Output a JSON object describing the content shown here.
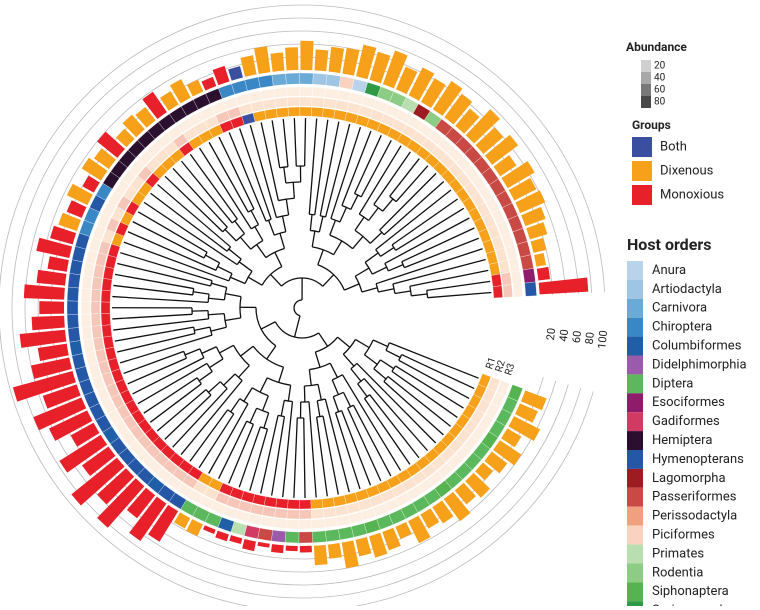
{
  "chart_data": {
    "type": "circular-tree",
    "ylim": [
      0,
      100
    ],
    "yticks": [
      20,
      40,
      60,
      80,
      100
    ],
    "rings": [
      "R1",
      "R2",
      "R3"
    ],
    "abundance_legend": {
      "title": "Abundance",
      "ticks": [
        20,
        40,
        60,
        80
      ]
    },
    "groups": {
      "title": "Groups",
      "names": [
        "Both",
        "Dixenous",
        "Monoxious"
      ],
      "colors": [
        "#3b4fa0",
        "#f7a11a",
        "#e8202a"
      ]
    },
    "host_orders": {
      "title": "Host orders",
      "names": [
        "Anura",
        "Artiodactyla",
        "Carnivora",
        "Chiroptera",
        "Columbiformes",
        "Didelphimorphia",
        "Diptera",
        "Esociformes",
        "Gadiformes",
        "Hemiptera",
        "Hymenopterans",
        "Lagomorpha",
        "Passeriformes",
        "Perissodactyla",
        "Piciformes",
        "Primates",
        "Rodentia",
        "Siphonaptera",
        "Soricomorpha"
      ],
      "colors": [
        "#b9d3ea",
        "#9ec5e3",
        "#6aaad6",
        "#3a87c6",
        "#1f5fa8",
        "#9b5aab",
        "#5cb85c",
        "#8e1c6b",
        "#d13a63",
        "#2a0f2e",
        "#2557a7",
        "#9c1c22",
        "#c94a44",
        "#f0a07e",
        "#fad3c0",
        "#b9dfb0",
        "#8ccc84",
        "#55b44f",
        "#2e9a44"
      ]
    },
    "tips": {
      "values": [
        35,
        30,
        45,
        25,
        40,
        30,
        20,
        35,
        28,
        42,
        30,
        25,
        38,
        20,
        30,
        34,
        26,
        40,
        22,
        30,
        10,
        8,
        12,
        6,
        15,
        9,
        11,
        7,
        20,
        18,
        55,
        70,
        45,
        85,
        60,
        90,
        50,
        75,
        40,
        65,
        80,
        55,
        95,
        60,
        45,
        70,
        50,
        38,
        62,
        44,
        30,
        52,
        36,
        30,
        25,
        35,
        20,
        35,
        28,
        40,
        22,
        30,
        26,
        38,
        24,
        32,
        20,
        15,
        25,
        18,
        30,
        40,
        28,
        35,
        45,
        32,
        38,
        40,
        50,
        45,
        55,
        38,
        48,
        42,
        52,
        45,
        35,
        55,
        40,
        50,
        30,
        48,
        38,
        42,
        33,
        28,
        20,
        15,
        18,
        75
      ],
      "group": [
        1,
        1,
        1,
        1,
        1,
        1,
        1,
        1,
        1,
        1,
        1,
        1,
        1,
        1,
        1,
        1,
        1,
        1,
        1,
        1,
        2,
        2,
        2,
        2,
        2,
        2,
        2,
        2,
        1,
        1,
        2,
        2,
        2,
        2,
        2,
        2,
        2,
        2,
        2,
        2,
        2,
        2,
        2,
        2,
        2,
        2,
        2,
        2,
        2,
        2,
        2,
        2,
        2,
        1,
        2,
        1,
        2,
        1,
        1,
        2,
        1,
        1,
        1,
        2,
        1,
        1,
        1,
        2,
        2,
        0,
        1,
        1,
        1,
        1,
        1,
        1,
        1,
        1,
        1,
        1,
        1,
        1,
        1,
        1,
        1,
        1,
        1,
        1,
        1,
        1,
        1,
        1,
        1,
        1,
        1,
        1,
        1,
        1,
        2,
        2
      ],
      "host": [
        17,
        6,
        6,
        6,
        17,
        6,
        6,
        6,
        6,
        17,
        6,
        6,
        6,
        6,
        6,
        17,
        6,
        6,
        6,
        6,
        12,
        6,
        5,
        12,
        8,
        15,
        4,
        6,
        6,
        6,
        10,
        10,
        4,
        10,
        10,
        10,
        10,
        4,
        10,
        10,
        10,
        10,
        10,
        10,
        4,
        10,
        10,
        10,
        10,
        10,
        10,
        10,
        10,
        3,
        3,
        10,
        3,
        9,
        9,
        9,
        9,
        9,
        9,
        9,
        9,
        9,
        9,
        9,
        3,
        3,
        3,
        3,
        2,
        2,
        2,
        1,
        1,
        14,
        0,
        18,
        16,
        16,
        15,
        11,
        16,
        12,
        12,
        12,
        12,
        12,
        12,
        12,
        12,
        12,
        12,
        12,
        12,
        12,
        7,
        10
      ]
    }
  }
}
